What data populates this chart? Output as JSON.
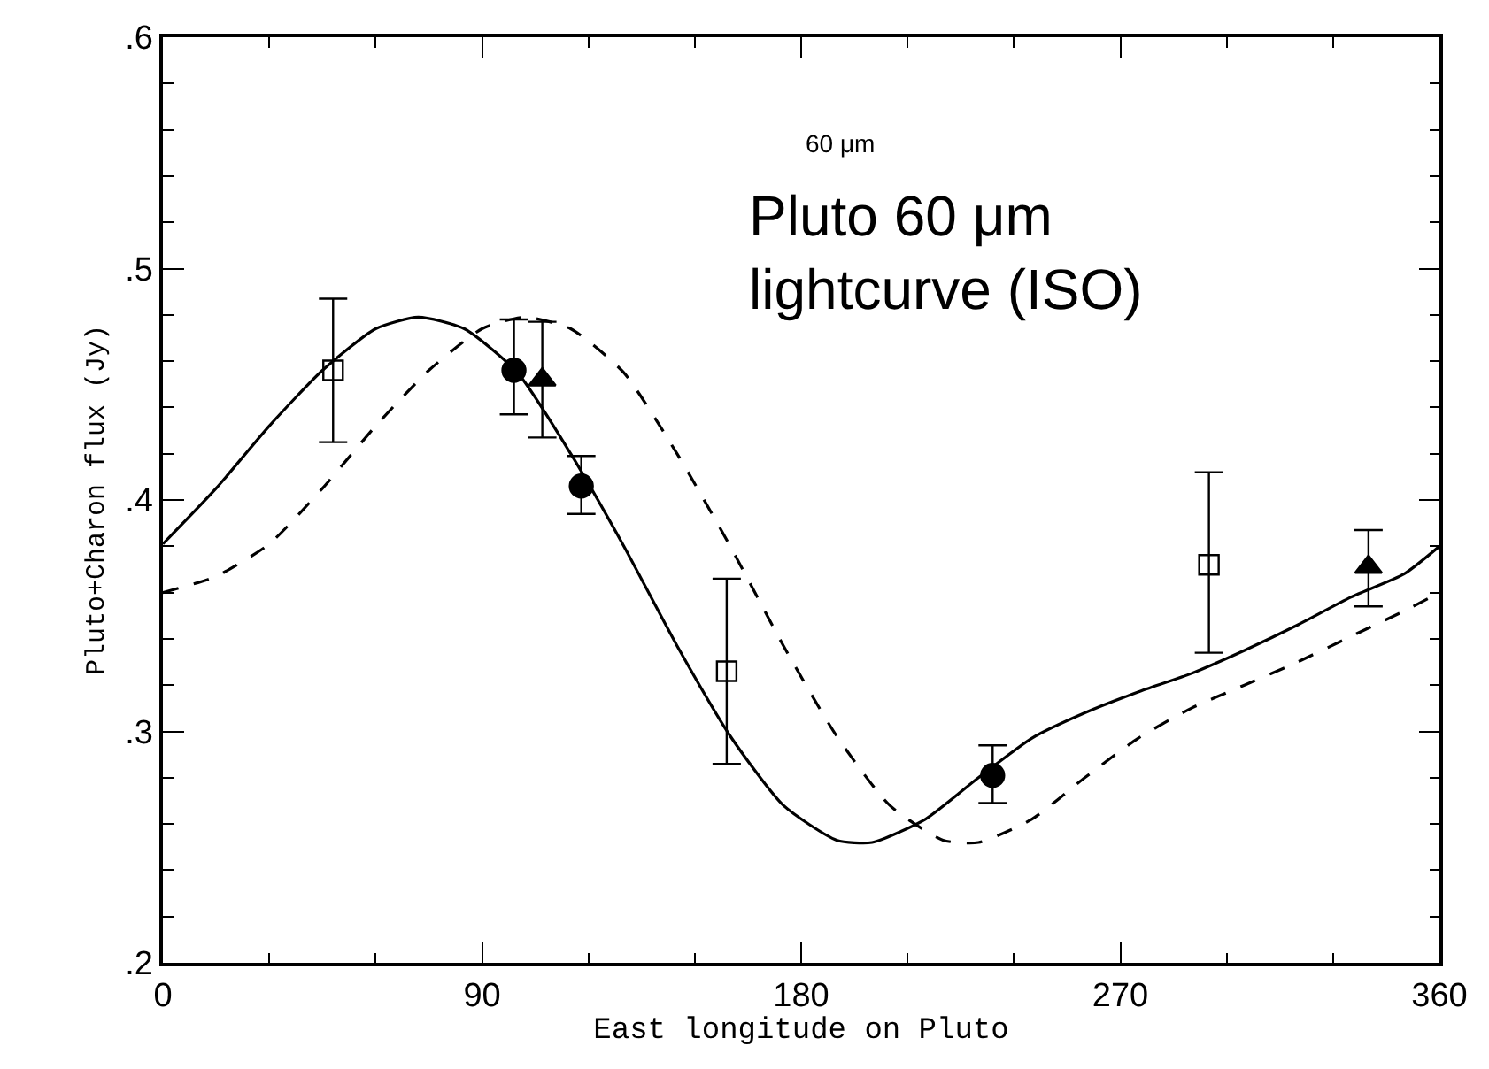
{
  "chart_data": {
    "type": "scatter",
    "xlabel": "East longitude on Pluto",
    "ylabel": "Pluto+Charon flux (Jy)",
    "xlim": [
      0,
      360
    ],
    "xticks": [
      0,
      90,
      180,
      270,
      360
    ],
    "ylim": [
      0.2,
      0.6
    ],
    "yticks": [
      {
        "value": 0.2,
        "label": ".2"
      },
      {
        "value": 0.3,
        "label": ".3"
      },
      {
        "value": 0.4,
        "label": ".4"
      },
      {
        "value": 0.5,
        "label": ".5"
      },
      {
        "value": 0.6,
        "label": ".6"
      }
    ],
    "annotations": [
      "60 μm",
      "Pluto 60 μm lightcurve (ISO)"
    ],
    "series": [
      {
        "type": "line",
        "color": "#000000",
        "marker": "none",
        "line_style": "solid",
        "x": [
          0,
          15,
          30,
          45,
          60,
          72,
          85,
          100,
          115,
          130,
          145,
          160,
          175,
          190,
          200,
          215,
          230,
          245,
          260,
          275,
          290,
          305,
          320,
          335,
          350,
          360
        ],
        "values": [
          0.381,
          0.405,
          0.432,
          0.456,
          0.474,
          0.479,
          0.474,
          0.455,
          0.42,
          0.38,
          0.337,
          0.298,
          0.268,
          0.253,
          0.252,
          0.262,
          0.28,
          0.297,
          0.308,
          0.317,
          0.325,
          0.335,
          0.346,
          0.358,
          0.368,
          0.38
        ]
      },
      {
        "type": "line",
        "color": "#000000",
        "marker": "none",
        "line_style": "dashed",
        "x": [
          0,
          15,
          30,
          45,
          60,
          75,
          90,
          102,
          115,
          130,
          145,
          160,
          175,
          190,
          205,
          220,
          230,
          245,
          260,
          275,
          290,
          305,
          320,
          335,
          350,
          360
        ],
        "values": [
          0.36,
          0.367,
          0.381,
          0.405,
          0.432,
          0.456,
          0.474,
          0.479,
          0.474,
          0.455,
          0.42,
          0.38,
          0.337,
          0.298,
          0.268,
          0.253,
          0.252,
          0.262,
          0.28,
          0.297,
          0.31,
          0.32,
          0.33,
          0.341,
          0.352,
          0.36
        ]
      },
      {
        "color": "#000000",
        "marker": "square",
        "x": [
          48,
          159,
          295
        ],
        "values": [
          0.456,
          0.326,
          0.372
        ],
        "errors": [
          [
            0.425,
            0.487
          ],
          [
            0.286,
            0.366
          ],
          [
            0.334,
            0.412
          ]
        ]
      },
      {
        "color": "#000000",
        "marker": "circle",
        "x": [
          99,
          118,
          234
        ],
        "values": [
          0.456,
          0.406,
          0.281
        ],
        "errors": [
          [
            0.437,
            0.478
          ],
          [
            0.394,
            0.419
          ],
          [
            0.269,
            0.294
          ]
        ]
      },
      {
        "color": "#000000",
        "marker": "triangle",
        "x": [
          107,
          340
        ],
        "values": [
          0.452,
          0.371
        ],
        "errors": [
          [
            0.427,
            0.477
          ],
          [
            0.354,
            0.387
          ]
        ]
      }
    ]
  }
}
